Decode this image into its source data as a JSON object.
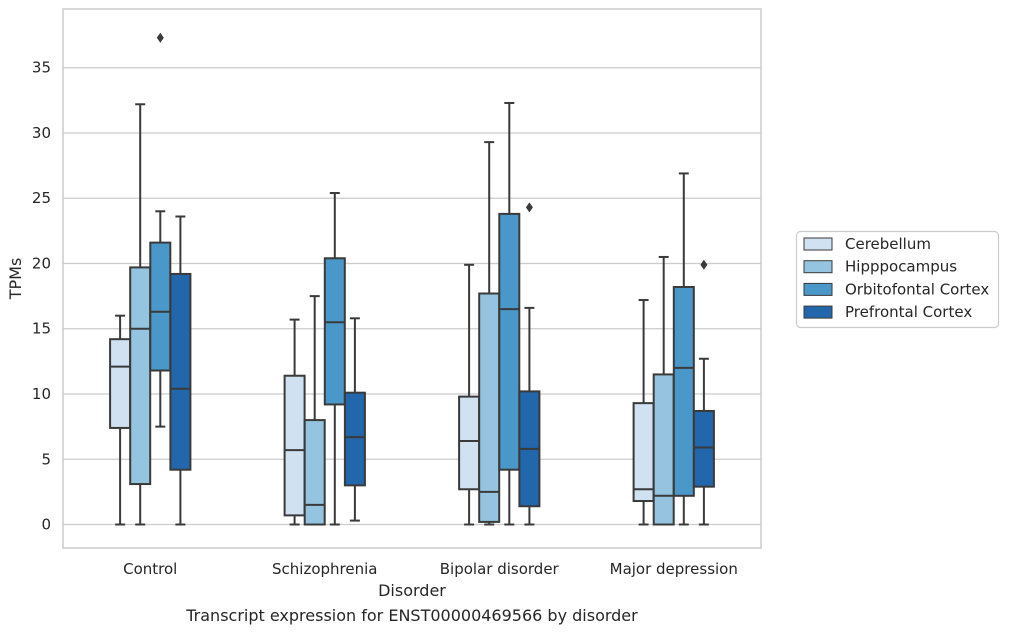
{
  "caption": "Transcript expression for ENST00000469566 by disorder",
  "colors": {
    "Cerebellum": "#d0e1f2",
    "Hipppocampus": "#94c4df",
    "Orbitofontal Cortex": "#4a98c9",
    "Prefrontal Cortex": "#2266ac",
    "line": "#3a3a3a",
    "grid": "#cccccc",
    "axes": "#cccccc"
  },
  "chart_data": {
    "type": "box",
    "xlabel": "Disorder",
    "ylabel": "TPMs",
    "ylim": [
      -1.8,
      39.5
    ],
    "yticks": [
      0,
      5,
      10,
      15,
      20,
      25,
      30,
      35
    ],
    "grid": true,
    "legend_position": "right",
    "categories": [
      "Control",
      "Schizophrenia",
      "Bipolar disorder",
      "Major depression"
    ],
    "series": [
      {
        "name": "Cerebellum",
        "boxes": [
          {
            "whislo": 0.0,
            "q1": 7.4,
            "med": 12.1,
            "q3": 14.2,
            "whishi": 16.0,
            "fliers": []
          },
          {
            "whislo": 0.0,
            "q1": 0.7,
            "med": 5.7,
            "q3": 11.4,
            "whishi": 15.7,
            "fliers": []
          },
          {
            "whislo": 0.0,
            "q1": 2.7,
            "med": 6.4,
            "q3": 9.8,
            "whishi": 19.9,
            "fliers": []
          },
          {
            "whislo": 0.0,
            "q1": 1.8,
            "med": 2.7,
            "q3": 9.3,
            "whishi": 17.2,
            "fliers": []
          }
        ]
      },
      {
        "name": "Hipppocampus",
        "boxes": [
          {
            "whislo": 0.0,
            "q1": 3.1,
            "med": 15.0,
            "q3": 19.7,
            "whishi": 32.2,
            "fliers": []
          },
          {
            "whislo": 0.0,
            "q1": 0.0,
            "med": 1.5,
            "q3": 8.0,
            "whishi": 17.5,
            "fliers": []
          },
          {
            "whislo": 0.0,
            "q1": 0.2,
            "med": 2.5,
            "q3": 17.7,
            "whishi": 29.3,
            "fliers": []
          },
          {
            "whislo": 0.0,
            "q1": 0.0,
            "med": 2.2,
            "q3": 11.5,
            "whishi": 20.5,
            "fliers": []
          }
        ]
      },
      {
        "name": "Orbitofontal Cortex",
        "boxes": [
          {
            "whislo": 7.5,
            "q1": 11.8,
            "med": 16.3,
            "q3": 21.6,
            "whishi": 24.0,
            "fliers": [
              37.3
            ]
          },
          {
            "whislo": 0.0,
            "q1": 9.2,
            "med": 15.5,
            "q3": 20.4,
            "whishi": 25.4,
            "fliers": []
          },
          {
            "whislo": 0.0,
            "q1": 4.2,
            "med": 16.5,
            "q3": 23.8,
            "whishi": 32.3,
            "fliers": []
          },
          {
            "whislo": 0.0,
            "q1": 2.2,
            "med": 12.0,
            "q3": 18.2,
            "whishi": 26.9,
            "fliers": []
          }
        ]
      },
      {
        "name": "Prefrontal Cortex",
        "boxes": [
          {
            "whislo": 0.0,
            "q1": 4.2,
            "med": 10.4,
            "q3": 19.2,
            "whishi": 23.6,
            "fliers": []
          },
          {
            "whislo": 0.3,
            "q1": 3.0,
            "med": 6.7,
            "q3": 10.1,
            "whishi": 15.8,
            "fliers": []
          },
          {
            "whislo": 0.0,
            "q1": 1.4,
            "med": 5.8,
            "q3": 10.2,
            "whishi": 16.6,
            "fliers": [
              24.3
            ]
          },
          {
            "whislo": 0.0,
            "q1": 2.9,
            "med": 5.9,
            "q3": 8.7,
            "whishi": 12.7,
            "fliers": [
              19.9
            ]
          }
        ]
      }
    ]
  }
}
